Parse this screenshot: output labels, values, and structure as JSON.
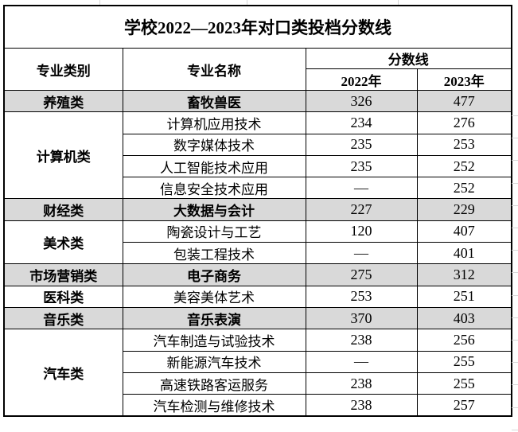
{
  "title": "学校2022—2023年对口类投档分数线",
  "header": {
    "category": "专业类别",
    "major": "专业名称",
    "score_line": "分数线",
    "year_2022": "2022年",
    "year_2023": "2023年"
  },
  "colors": {
    "highlight_row_bg": "#d9d9d9",
    "border": "#000000",
    "background": "#ffffff",
    "text": "#000000"
  },
  "groups": [
    {
      "category": "养殖类",
      "highlight": true,
      "majors": [
        {
          "name": "畜牧兽医",
          "s2022": "326",
          "s2023": "477"
        }
      ]
    },
    {
      "category": "计算机类",
      "highlight": false,
      "majors": [
        {
          "name": "计算机应用技术",
          "s2022": "234",
          "s2023": "276"
        },
        {
          "name": "数字媒体技术",
          "s2022": "235",
          "s2023": "253"
        },
        {
          "name": "人工智能技术应用",
          "s2022": "235",
          "s2023": "252"
        },
        {
          "name": "信息安全技术应用",
          "s2022": "—",
          "s2023": "252"
        }
      ]
    },
    {
      "category": "财经类",
      "highlight": true,
      "majors": [
        {
          "name": "大数据与会计",
          "s2022": "227",
          "s2023": "229"
        }
      ]
    },
    {
      "category": "美术类",
      "highlight": false,
      "majors": [
        {
          "name": "陶瓷设计与工艺",
          "s2022": "120",
          "s2023": "407"
        },
        {
          "name": "包装工程技术",
          "s2022": "—",
          "s2023": "401"
        }
      ]
    },
    {
      "category": "市场营销类",
      "highlight": true,
      "majors": [
        {
          "name": "电子商务",
          "s2022": "275",
          "s2023": "312"
        }
      ]
    },
    {
      "category": "医科类",
      "highlight": false,
      "majors": [
        {
          "name": "美容美体艺术",
          "s2022": "253",
          "s2023": "251"
        }
      ]
    },
    {
      "category": "音乐类",
      "highlight": true,
      "majors": [
        {
          "name": "音乐表演",
          "s2022": "370",
          "s2023": "403"
        }
      ]
    },
    {
      "category": "汽车类",
      "highlight": false,
      "majors": [
        {
          "name": "汽车制造与试验技术",
          "s2022": "238",
          "s2023": "256"
        },
        {
          "name": "新能源汽车技术",
          "s2022": "—",
          "s2023": "255"
        },
        {
          "name": "高速铁路客运服务",
          "s2022": "238",
          "s2023": "255"
        },
        {
          "name": "汽车检测与维修技术",
          "s2022": "238",
          "s2023": "257"
        }
      ]
    }
  ]
}
